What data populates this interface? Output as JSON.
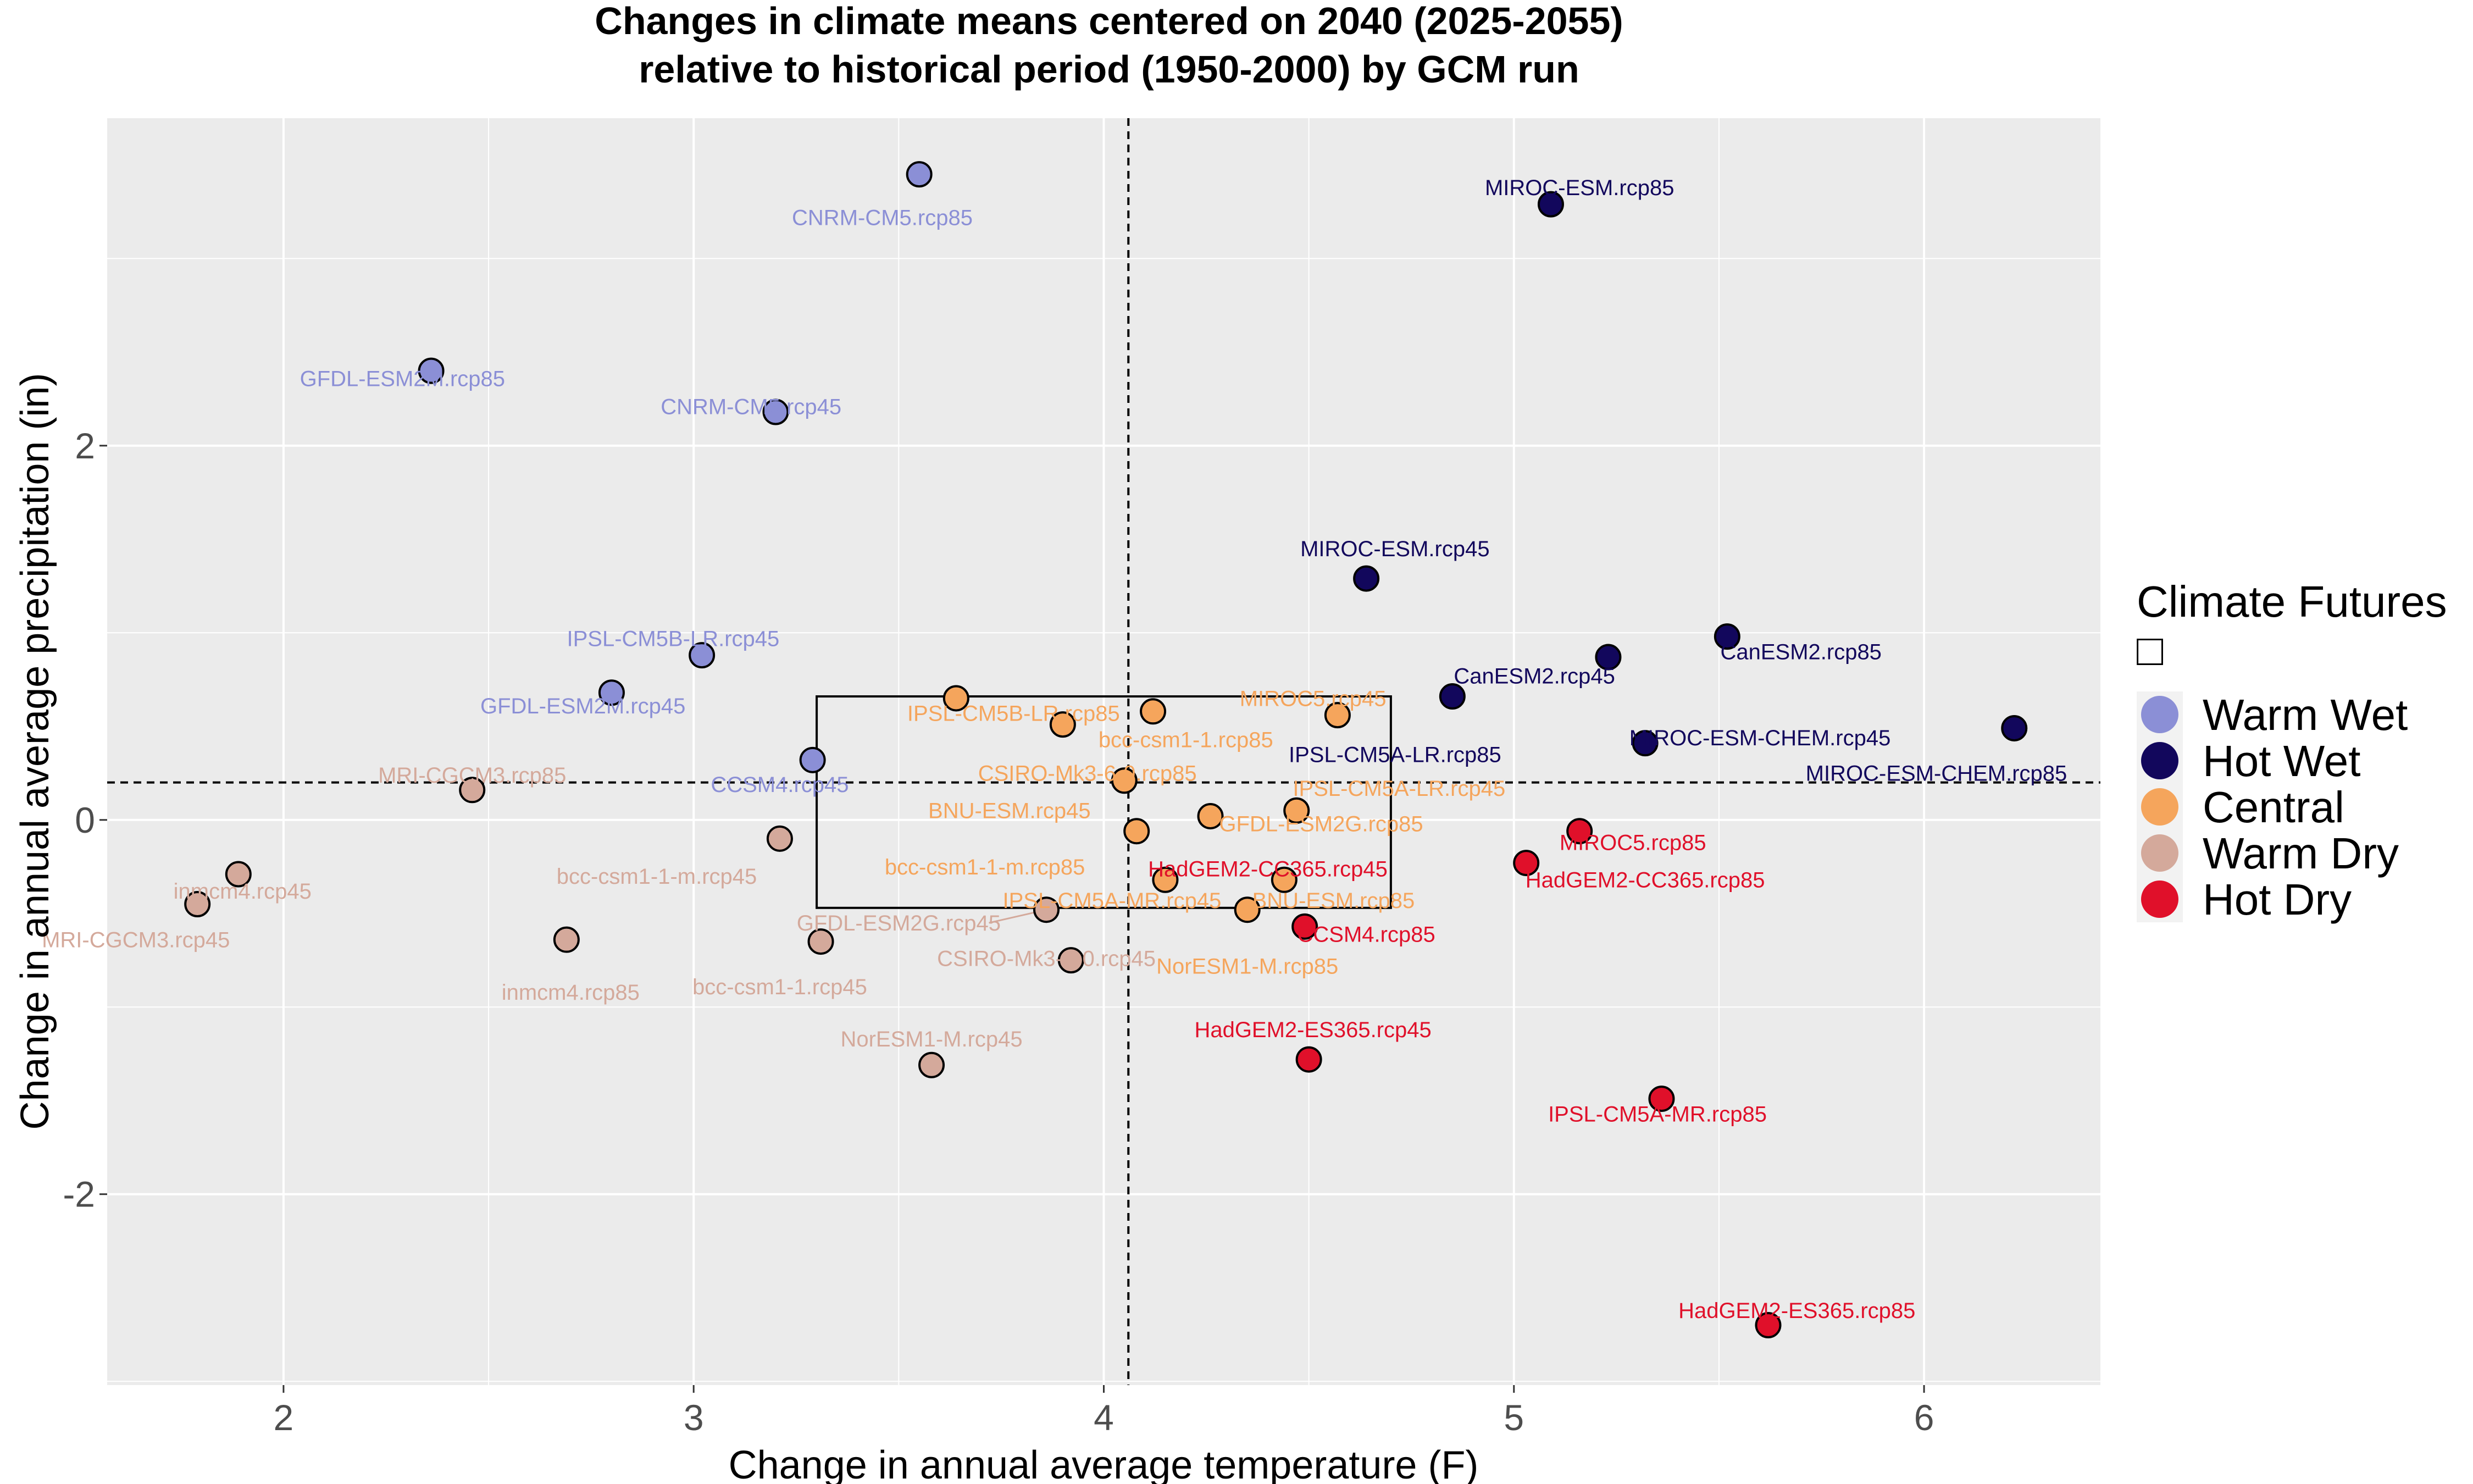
{
  "chart_data": {
    "type": "scatter",
    "title": [
      "Changes in climate means centered on 2040 (2025-2055)",
      "relative to historical period (1950-2000) by GCM run"
    ],
    "xlabel": "Change in annual average temperature (F)",
    "ylabel": "Change in annual average precipitation (in)",
    "xlim": [
      1.57,
      6.43
    ],
    "ylim": [
      -3.02,
      3.75
    ],
    "x_ticks": [
      2,
      3,
      4,
      5,
      6
    ],
    "y_ticks": [
      -2,
      0,
      2
    ],
    "y_tick_labels": [
      "-2",
      "0",
      "2"
    ],
    "grid": true,
    "reference_lines": {
      "x": 4.06,
      "y": 0.2
    },
    "central_box": {
      "x_range": [
        3.3,
        4.7
      ],
      "y_range": [
        -0.47,
        0.66
      ]
    },
    "legend": {
      "title": "Climate Futures",
      "subtitle_glyph": "□",
      "position": "right",
      "entries": [
        {
          "name": "Warm Wet",
          "color": "#8b8fd6"
        },
        {
          "name": "Hot Wet",
          "color": "#12075c"
        },
        {
          "name": "Central",
          "color": "#f5a55c"
        },
        {
          "name": "Warm Dry",
          "color": "#d4a99b"
        },
        {
          "name": "Hot Dry",
          "color": "#e0102a"
        }
      ]
    },
    "series": [
      {
        "name": "Warm Wet",
        "color": "#8b8fd6",
        "label_color": "#8b8fd6",
        "points": [
          {
            "label": "CNRM-CM5.rcp85",
            "x": 3.55,
            "y": 3.45
          },
          {
            "label": "GFDL-ESM2M.rcp85",
            "x": 2.36,
            "y": 2.4
          },
          {
            "label": "CNRM-CM5.rcp45",
            "x": 3.2,
            "y": 2.18
          },
          {
            "label": "IPSL-CM5B-LR.rcp45",
            "x": 3.02,
            "y": 0.88
          },
          {
            "label": "GFDL-ESM2M.rcp45",
            "x": 2.8,
            "y": 0.68
          },
          {
            "label": "CCSM4.rcp45",
            "x": 3.29,
            "y": 0.32
          }
        ]
      },
      {
        "name": "Hot Wet",
        "color": "#12075c",
        "label_color": "#12075c",
        "points": [
          {
            "label": "MIROC-ESM.rcp85",
            "x": 5.09,
            "y": 3.29
          },
          {
            "label": "MIROC-ESM.rcp45",
            "x": 4.64,
            "y": 1.29
          },
          {
            "label": "CanESM2.rcp85",
            "x": 5.52,
            "y": 0.98
          },
          {
            "label": "CanESM2.rcp45",
            "x": 5.23,
            "y": 0.87
          },
          {
            "label": "CanESM2.rcp45",
            "x": 4.85,
            "y": 0.66
          },
          {
            "label": "IPSL-CM5A-LR.rcp85",
            "x": 5.32,
            "y": 0.41
          },
          {
            "label": "MIROC-ESM-CHEM.rcp45",
            "x": 6.22,
            "y": 0.49
          }
        ]
      },
      {
        "name": "Central",
        "color": "#f5a55c",
        "label_color": "#f5a55c",
        "points": [
          {
            "label": "IPSL-CM5B-LR.rcp85",
            "x": 3.64,
            "y": 0.65
          },
          {
            "label": "MIROC5.rcp45",
            "x": 4.12,
            "y": 0.58
          },
          {
            "label": "MIROC5.rcp45",
            "x": 4.57,
            "y": 0.56
          },
          {
            "label": "bcc-csm1-1.rcp85",
            "x": 3.9,
            "y": 0.51
          },
          {
            "label": "CSIRO-Mk3-6-0.rcp85",
            "x": 4.05,
            "y": 0.21
          },
          {
            "label": "GFDL-ESM2G.rcp85",
            "x": 4.47,
            "y": 0.05
          },
          {
            "label": "BNU-ESM.rcp45",
            "x": 4.26,
            "y": 0.02
          },
          {
            "label": "IPSL-CM5A-LR.rcp45",
            "x": 4.08,
            "y": -0.06
          },
          {
            "label": "bcc-csm1-1-m.rcp85",
            "x": 4.15,
            "y": -0.32
          },
          {
            "label": "BNU-ESM.rcp85",
            "x": 4.44,
            "y": -0.32
          },
          {
            "label": "IPSL-CM5A-MR.rcp45",
            "x": 4.35,
            "y": -0.48
          }
        ]
      },
      {
        "name": "Warm Dry",
        "color": "#d4a99b",
        "label_color": "#d4a99b",
        "points": [
          {
            "label": "MRI-CGCM3.rcp85",
            "x": 2.46,
            "y": 0.16
          },
          {
            "label": "bcc-csm1-1-m.rcp45",
            "x": 3.21,
            "y": -0.1
          },
          {
            "label": "inmcm4.rcp45",
            "x": 1.89,
            "y": -0.29
          },
          {
            "label": "MRI-CGCM3.rcp45",
            "x": 1.79,
            "y": -0.45
          },
          {
            "label": "inmcm4.rcp85",
            "x": 2.69,
            "y": -0.64
          },
          {
            "label": "bcc-csm1-1.rcp45",
            "x": 3.31,
            "y": -0.65
          },
          {
            "label": "GFDL-ESM2G.rcp45",
            "x": 3.86,
            "y": -0.48
          },
          {
            "label": "CSIRO-Mk3-6-0.rcp45",
            "x": 3.92,
            "y": -0.75
          },
          {
            "label": "NorESM1-M.rcp45",
            "x": 3.58,
            "y": -1.31
          }
        ]
      },
      {
        "name": "Hot Dry",
        "color": "#e0102a",
        "label_color": "#e0102a",
        "points": [
          {
            "label": "MIROC5.rcp85",
            "x": 5.16,
            "y": -0.06
          },
          {
            "label": "HadGEM2-CC365.rcp85",
            "x": 5.03,
            "y": -0.23
          },
          {
            "label": "CCSM4.rcp85",
            "x": 4.49,
            "y": -0.57
          },
          {
            "label": "HadGEM2-ES365.rcp45",
            "x": 4.5,
            "y": -1.28
          },
          {
            "label": "IPSL-CM5A-MR.rcp85",
            "x": 5.36,
            "y": -1.49
          },
          {
            "label": "HadGEM2-ES365.rcp85",
            "x": 5.62,
            "y": -2.7
          }
        ]
      }
    ],
    "text_labels": [
      {
        "text": "CNRM-CM5.rcp85",
        "x": 3.46,
        "y": 3.22,
        "color": "#8b8fd6"
      },
      {
        "text": "GFDL-ESM2M.rcp85",
        "x": 2.29,
        "y": 2.36,
        "color": "#8b8fd6"
      },
      {
        "text": "CNRM-CM5.rcp45",
        "x": 3.14,
        "y": 2.21,
        "color": "#8b8fd6"
      },
      {
        "text": "IPSL-CM5B-LR.rcp45",
        "x": 2.95,
        "y": 0.97,
        "color": "#8b8fd6"
      },
      {
        "text": "GFDL-ESM2M.rcp45",
        "x": 2.73,
        "y": 0.61,
        "color": "#8b8fd6"
      },
      {
        "text": "CCSM4.rcp45",
        "x": 3.21,
        "y": 0.19,
        "color": "#8b8fd6"
      },
      {
        "text": "MIROC-ESM.rcp85",
        "x": 5.16,
        "y": 3.38,
        "color": "#12075c"
      },
      {
        "text": "MIROC-ESM.rcp45",
        "x": 4.71,
        "y": 1.45,
        "color": "#12075c"
      },
      {
        "text": "CanESM2.rcp85",
        "x": 5.7,
        "y": 0.9,
        "color": "#12075c"
      },
      {
        "text": "CanESM2.rcp45",
        "x": 5.05,
        "y": 0.77,
        "color": "#12075c"
      },
      {
        "text": "IPSL-CM5A-LR.rcp85",
        "x": 4.71,
        "y": 0.35,
        "color": "#12075c"
      },
      {
        "text": "MIROC-ESM-CHEM.rcp45",
        "x": 5.6,
        "y": 0.44,
        "color": "#12075c"
      },
      {
        "text": "MIROC-ESM-CHEM.rcp85",
        "x": 6.03,
        "y": 0.25,
        "color": "#12075c"
      },
      {
        "text": "IPSL-CM5B-LR.rcp85",
        "x": 3.78,
        "y": 0.57,
        "color": "#f5a55c"
      },
      {
        "text": "MIROC5.rcp45",
        "x": 4.51,
        "y": 0.65,
        "color": "#f5a55c"
      },
      {
        "text": "bcc-csm1-1.rcp85",
        "x": 4.2,
        "y": 0.43,
        "color": "#f5a55c"
      },
      {
        "text": "CSIRO-Mk3-6-0.rcp85",
        "x": 3.96,
        "y": 0.25,
        "color": "#f5a55c"
      },
      {
        "text": "IPSL-CM5A-LR.rcp45",
        "x": 4.72,
        "y": 0.17,
        "color": "#f5a55c"
      },
      {
        "text": "BNU-ESM.rcp45",
        "x": 3.77,
        "y": 0.05,
        "color": "#f5a55c"
      },
      {
        "text": "GFDL-ESM2G.rcp85",
        "x": 4.53,
        "y": -0.02,
        "color": "#f5a55c"
      },
      {
        "text": "bcc-csm1-1-m.rcp85",
        "x": 3.71,
        "y": -0.25,
        "color": "#f5a55c"
      },
      {
        "text": "IPSL-CM5A-MR.rcp45",
        "x": 4.02,
        "y": -0.43,
        "color": "#f5a55c"
      },
      {
        "text": "BNU-ESM.rcp85",
        "x": 4.56,
        "y": -0.43,
        "color": "#f5a55c"
      },
      {
        "text": "NorESM1-M.rcp85",
        "x": 4.35,
        "y": -0.78,
        "color": "#f5a55c"
      },
      {
        "text": "MRI-CGCM3.rcp85",
        "x": 2.46,
        "y": 0.24,
        "color": "#d4a99b"
      },
      {
        "text": "bcc-csm1-1-m.rcp45",
        "x": 2.91,
        "y": -0.3,
        "color": "#d4a99b"
      },
      {
        "text": "inmcm4.rcp45",
        "x": 1.9,
        "y": -0.38,
        "color": "#d4a99b"
      },
      {
        "text": "MRI-CGCM3.rcp45",
        "x": 1.64,
        "y": -0.64,
        "color": "#d4a99b"
      },
      {
        "text": "inmcm4.rcp85",
        "x": 2.7,
        "y": -0.92,
        "color": "#d4a99b"
      },
      {
        "text": "bcc-csm1-1.rcp45",
        "x": 3.21,
        "y": -0.89,
        "color": "#d4a99b"
      },
      {
        "text": "GFDL-ESM2G.rcp45",
        "x": 3.5,
        "y": -0.55,
        "color": "#d4a99b"
      },
      {
        "text": "CSIRO-Mk3-6-0.rcp45",
        "x": 3.86,
        "y": -0.74,
        "color": "#d4a99b"
      },
      {
        "text": "NorESM1-M.rcp45",
        "x": 3.58,
        "y": -1.17,
        "color": "#d4a99b"
      },
      {
        "text": "MIROC5.rcp85",
        "x": 5.29,
        "y": -0.12,
        "color": "#e0102a"
      },
      {
        "text": "HadGEM2-CC365.rcp45",
        "x": 4.4,
        "y": -0.26,
        "color": "#e0102a"
      },
      {
        "text": "HadGEM2-CC365.rcp85",
        "x": 5.32,
        "y": -0.32,
        "color": "#e0102a"
      },
      {
        "text": "CCSM4.rcp85",
        "x": 4.64,
        "y": -0.61,
        "color": "#e0102a"
      },
      {
        "text": "HadGEM2-ES365.rcp45",
        "x": 4.51,
        "y": -1.12,
        "color": "#e0102a"
      },
      {
        "text": "IPSL-CM5A-MR.rcp85",
        "x": 5.35,
        "y": -1.57,
        "color": "#e0102a"
      },
      {
        "text": "HadGEM2-ES365.rcp85",
        "x": 5.69,
        "y": -2.62,
        "color": "#e0102a"
      }
    ],
    "leader_lines": [
      {
        "from": [
          3.86,
          -0.48
        ],
        "to": [
          3.72,
          -0.55
        ]
      }
    ]
  }
}
